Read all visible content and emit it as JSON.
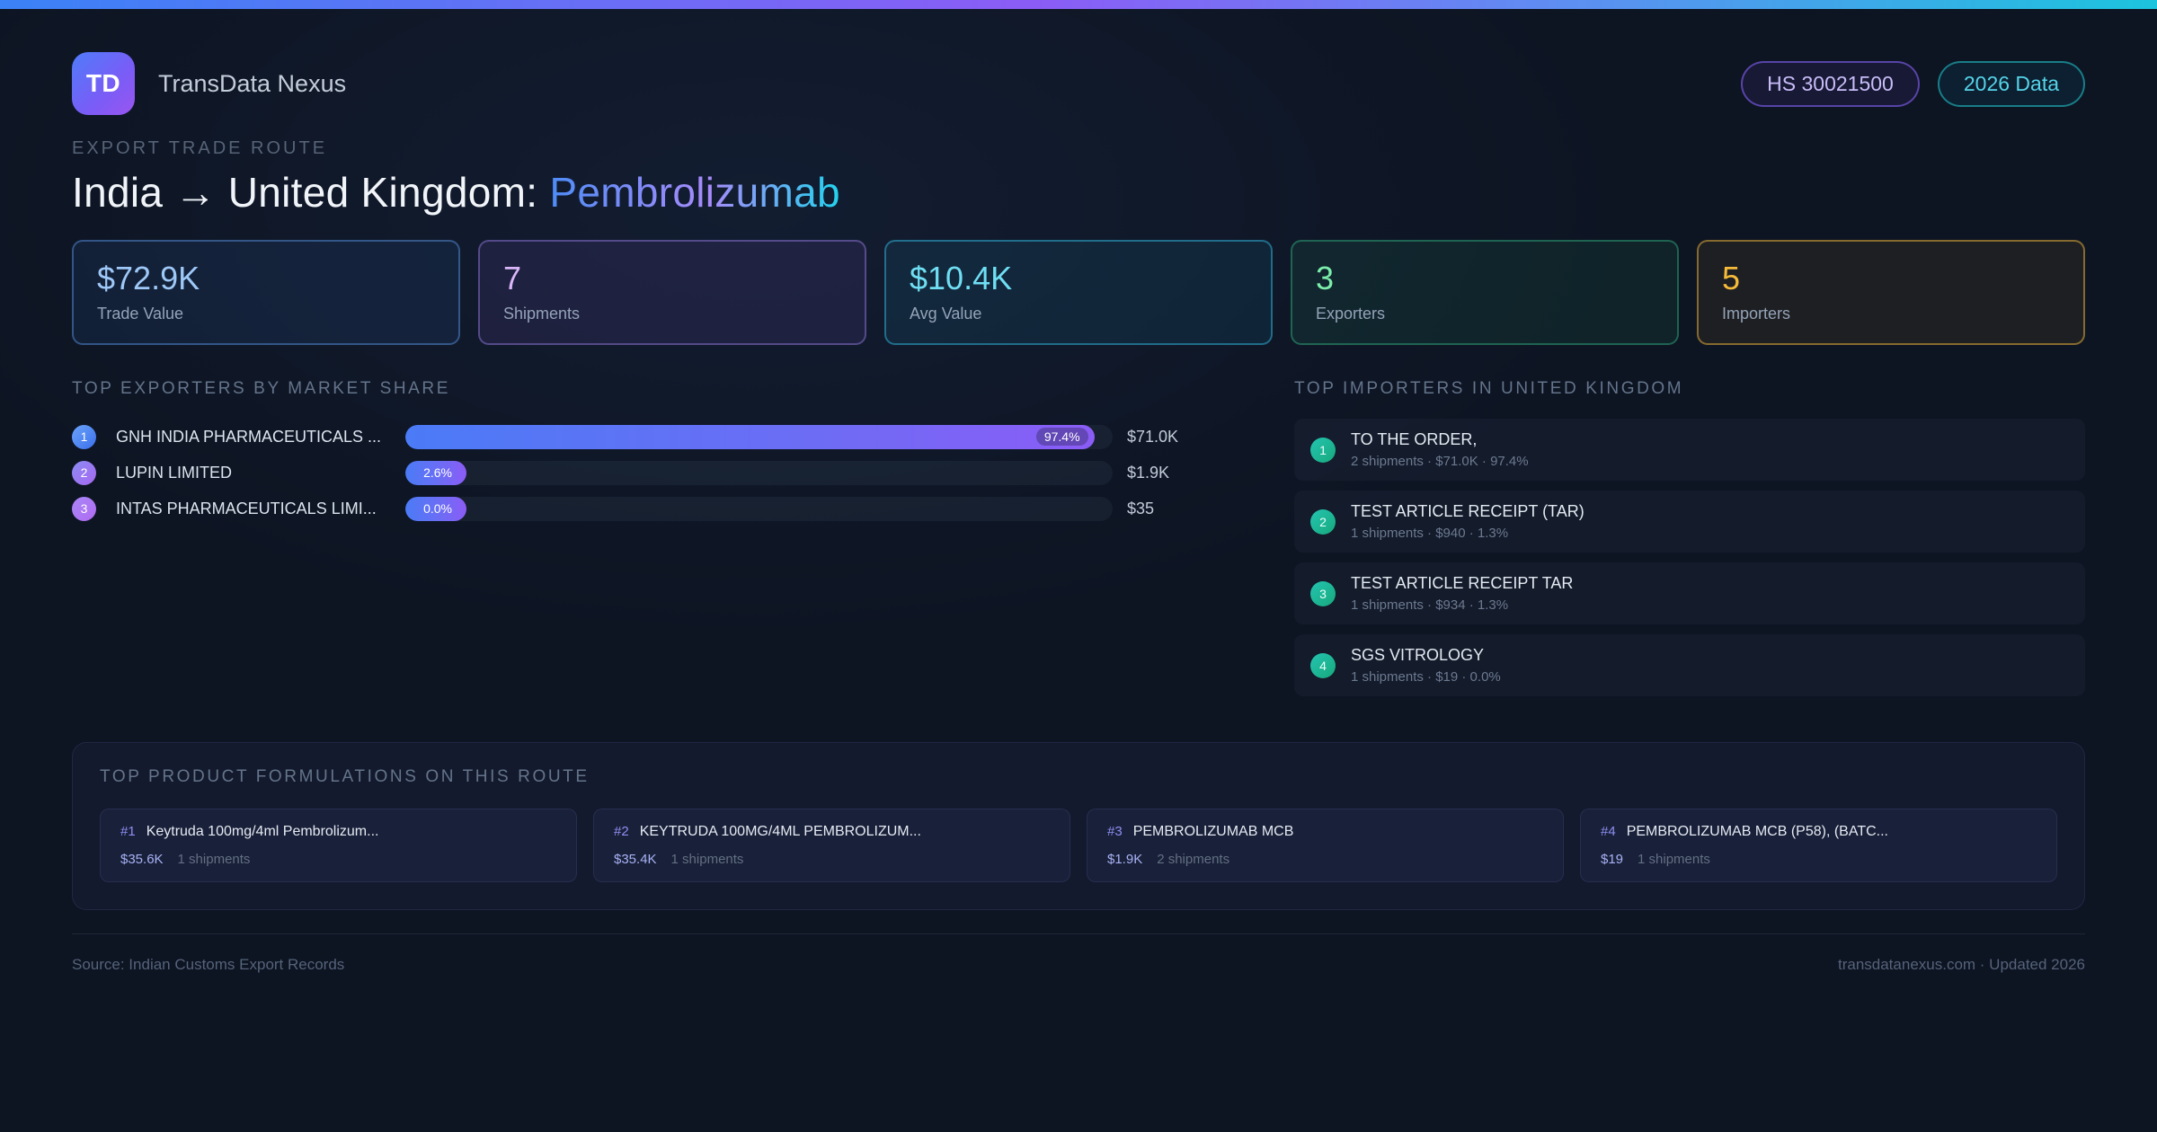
{
  "brand": {
    "logo": "TD",
    "name": "TransData Nexus"
  },
  "chips": {
    "hs_code": "HS 30021500",
    "year": "2026 Data"
  },
  "header": {
    "eyebrow": "EXPORT TRADE ROUTE",
    "route": "India → United Kingdom: ",
    "product": "Pembrolizumab"
  },
  "stats": [
    {
      "value": "$72.9K",
      "label": "Trade Value"
    },
    {
      "value": "7",
      "label": "Shipments"
    },
    {
      "value": "$10.4K",
      "label": "Avg Value"
    },
    {
      "value": "3",
      "label": "Exporters"
    },
    {
      "value": "5",
      "label": "Importers"
    }
  ],
  "exporters": {
    "title": "TOP EXPORTERS BY MARKET SHARE",
    "rows": [
      {
        "rank": "1",
        "name": "GNH INDIA PHARMACEUTICALS ...",
        "share_pct": 97.4,
        "share_label": "97.4%",
        "value": "$71.0K"
      },
      {
        "rank": "2",
        "name": "LUPIN LIMITED",
        "share_pct": 2.6,
        "share_label": "2.6%",
        "value": "$1.9K"
      },
      {
        "rank": "3",
        "name": "INTAS PHARMACEUTICALS LIMI...",
        "share_pct": 0.0,
        "share_label": "0.0%",
        "value": "$35"
      }
    ]
  },
  "importers": {
    "title": "TOP IMPORTERS IN UNITED KINGDOM",
    "rows": [
      {
        "rank": "1",
        "name": "TO THE ORDER,",
        "meta": "2 shipments · $71.0K · 97.4%"
      },
      {
        "rank": "2",
        "name": "TEST ARTICLE RECEIPT (TAR)",
        "meta": "1 shipments · $940 · 1.3%"
      },
      {
        "rank": "3",
        "name": "TEST ARTICLE RECEIPT TAR",
        "meta": "1 shipments · $934 · 1.3%"
      },
      {
        "rank": "4",
        "name": "SGS VITROLOGY",
        "meta": "1 shipments · $19 · 0.0%"
      }
    ]
  },
  "products": {
    "title": "TOP PRODUCT FORMULATIONS ON THIS ROUTE",
    "cards": [
      {
        "rank": "#1",
        "name": "Keytruda 100mg/4ml Pembrolizum...",
        "value": "$35.6K",
        "shipments": "1 shipments"
      },
      {
        "rank": "#2",
        "name": "KEYTRUDA 100MG/4ML PEMBROLIZUM...",
        "value": "$35.4K",
        "shipments": "1 shipments"
      },
      {
        "rank": "#3",
        "name": "PEMBROLIZUMAB MCB",
        "value": "$1.9K",
        "shipments": "2 shipments"
      },
      {
        "rank": "#4",
        "name": "PEMBROLIZUMAB MCB (P58), (BATC...",
        "value": "$19",
        "shipments": "1 shipments"
      }
    ]
  },
  "footer": {
    "source": "Source: Indian Customs Export Records",
    "site": "transdatanexus.com · Updated 2026"
  },
  "colors": {
    "accent_blue": "#3b82f6",
    "accent_purple": "#8b5cf6",
    "accent_cyan": "#22d3ee",
    "accent_green": "#34d399",
    "accent_amber": "#f6bb3a",
    "page_bg": "#0d1422"
  }
}
